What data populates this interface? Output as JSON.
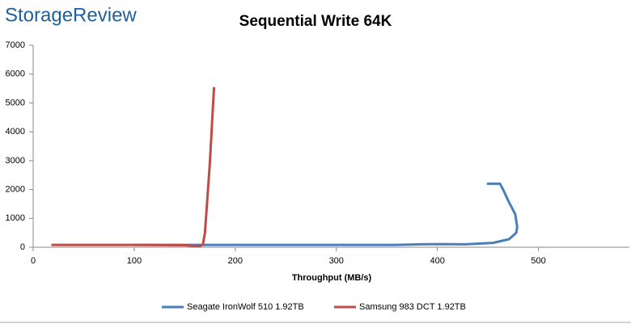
{
  "logo": "StorageReview",
  "chart_data": {
    "type": "line",
    "title": "Sequential Write 64K",
    "xlabel": "Throughput (MB/s)",
    "xlim": [
      0,
      590
    ],
    "xticks": [
      0,
      100,
      200,
      300,
      400,
      500
    ],
    "ylim": [
      0,
      7000
    ],
    "yticks": [
      0,
      1000,
      2000,
      3000,
      4000,
      5000,
      6000,
      7000
    ],
    "grid": false,
    "legend": "bottom",
    "series": [
      {
        "name": "Seagate IronWolf 510 1.92TB",
        "color": "#4a7ebb",
        "x": [
          100,
          207,
          359,
          383,
          403,
          427,
          455,
          471,
          478,
          479,
          477,
          471,
          465,
          462,
          457,
          452,
          449
        ],
        "values": [
          80,
          80,
          80,
          100,
          110,
          100,
          150,
          280,
          500,
          700,
          1150,
          1550,
          2000,
          2200,
          2200,
          2200,
          2200
        ]
      },
      {
        "name": "Samsung 983 DCT 1.92TB",
        "color": "#be4b48",
        "x": [
          18,
          100,
          150,
          165,
          168,
          170,
          172,
          175,
          177,
          179
        ],
        "values": [
          80,
          80,
          70,
          40,
          100,
          500,
          1500,
          3000,
          4300,
          5550
        ]
      }
    ]
  }
}
